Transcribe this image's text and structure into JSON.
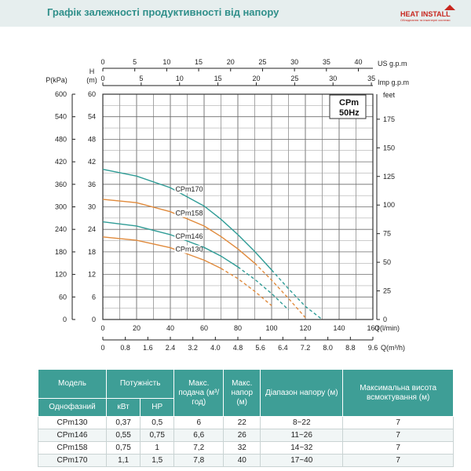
{
  "header": {
    "title": "Графік залежності продуктивності від напору",
    "logo_text": "HEAT INSTALL",
    "logo_sub": "Обладнання та інженерні системи"
  },
  "colors": {
    "teal": "#2f9c96",
    "orange": "#e08a3c",
    "grid": "#555555",
    "header_bg": "#3e9e96"
  },
  "chart_data": {
    "type": "line",
    "legend_box": [
      "CPm",
      "50Hz"
    ],
    "xlabel": "Q(l/min)",
    "xlabel2": "Q(m³/h)",
    "x_ticks": [
      0,
      20,
      40,
      60,
      80,
      100,
      120,
      140,
      160
    ],
    "x2_ticks": [
      "0",
      "0.8",
      "1.6",
      "2.4",
      "3.2",
      "4.0",
      "4.8",
      "5.6",
      "6.4",
      "7.2",
      "8.0",
      "8.8",
      "9.6"
    ],
    "top_us_label": "US  g.p.m",
    "top_us_ticks": [
      0,
      5,
      10,
      15,
      20,
      25,
      30,
      35,
      40
    ],
    "top_imp_label": "Imp  g.p.m",
    "top_imp_ticks": [
      0,
      5,
      10,
      15,
      20,
      25,
      30,
      35
    ],
    "left_p_label": "P(kPa)",
    "left_p_ticks": [
      0,
      60,
      120,
      180,
      240,
      300,
      360,
      420,
      480,
      540,
      600
    ],
    "left_h_label_top": "H",
    "left_h_label": "(m)",
    "left_h_ticks": [
      0,
      6,
      12,
      18,
      24,
      30,
      36,
      42,
      48,
      54,
      60
    ],
    "right_label": "feet",
    "right_ticks": [
      0,
      25,
      50,
      75,
      100,
      125,
      150,
      175
    ],
    "xlim": [
      0,
      160
    ],
    "ylim": [
      0,
      60
    ],
    "series": [
      {
        "name": "CPm170",
        "color": "#2f9c96",
        "x": [
          0,
          20,
          40,
          60,
          70,
          80,
          90,
          100,
          110,
          120,
          130
        ],
        "y": [
          40,
          38.2,
          35.1,
          30.2,
          26.7,
          22.6,
          18.1,
          13.2,
          8.2,
          3.5,
          0
        ]
      },
      {
        "name": "CPm158",
        "color": "#e08a3c",
        "x": [
          0,
          20,
          40,
          60,
          70,
          80,
          90,
          100,
          110,
          120
        ],
        "y": [
          32,
          31.1,
          28.7,
          24.9,
          22.1,
          18.8,
          15,
          10.5,
          5.6,
          0.5
        ]
      },
      {
        "name": "CPm146",
        "color": "#2f9c96",
        "x": [
          0,
          20,
          40,
          60,
          70,
          80,
          90,
          100,
          110
        ],
        "y": [
          26,
          24.9,
          22.6,
          19.2,
          16.9,
          14,
          10.7,
          6.9,
          2.6
        ]
      },
      {
        "name": "CPm130",
        "color": "#e08a3c",
        "x": [
          0,
          20,
          40,
          60,
          70,
          80,
          90,
          100
        ],
        "y": [
          22,
          21.1,
          19.1,
          15.8,
          13.6,
          10.9,
          7.5,
          3.7
        ]
      }
    ]
  },
  "table": {
    "headers": {
      "model": "Модель",
      "power": "Потужність",
      "flow": "Макс. подача (м³/год)",
      "head": "Макс. напор (м)",
      "range": "Діапазон напору (м)",
      "suction": "Максимальна висота всмоктування (м)",
      "single_phase": "Однофазний",
      "kw": "кВт",
      "hp": "HP"
    },
    "rows": [
      {
        "model": "CPm130",
        "kw": "0,37",
        "hp": "0,5",
        "flow": "6",
        "head": "22",
        "range": "8~22",
        "suction": "7"
      },
      {
        "model": "CPm146",
        "kw": "0,55",
        "hp": "0,75",
        "flow": "6,6",
        "head": "26",
        "range": "11~26",
        "suction": "7"
      },
      {
        "model": "CPm158",
        "kw": "0,75",
        "hp": "1",
        "flow": "7,2",
        "head": "32",
        "range": "14~32",
        "suction": "7"
      },
      {
        "model": "CPm170",
        "kw": "1,1",
        "hp": "1,5",
        "flow": "7,8",
        "head": "40",
        "range": "17~40",
        "suction": "7"
      }
    ]
  }
}
